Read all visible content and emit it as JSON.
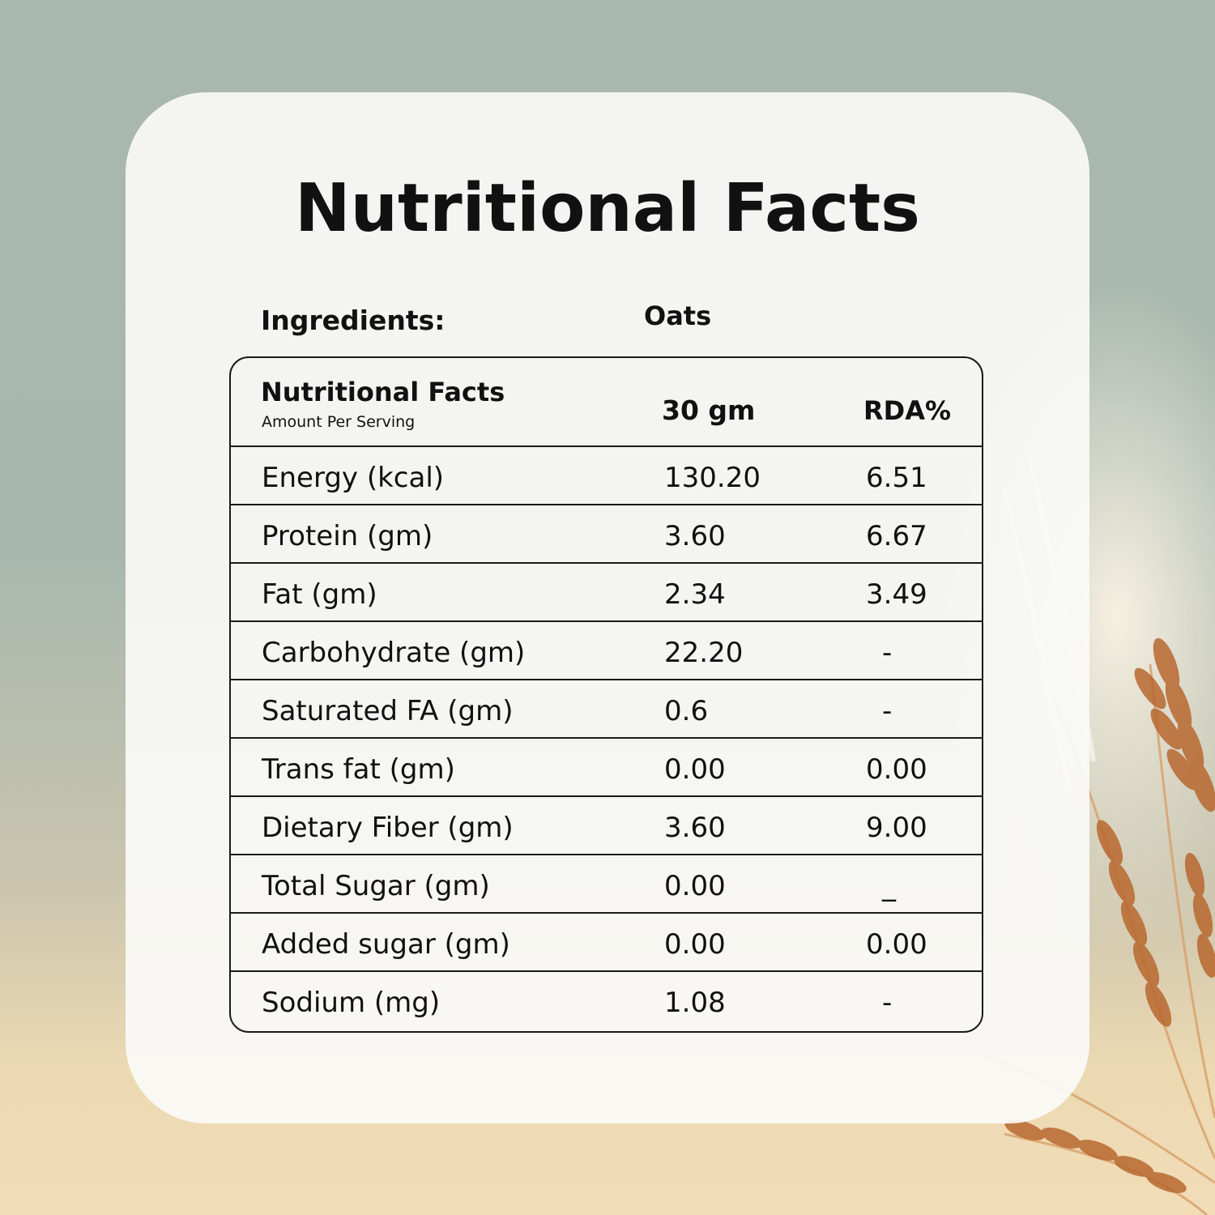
{
  "title": "Nutritional Facts",
  "ingredients": {
    "label": "Ingredients:",
    "value": "Oats"
  },
  "table": {
    "header": {
      "title": "Nutritional Facts",
      "subtitle": "Amount Per Serving",
      "col_amount": "30 gm",
      "col_rda": "RDA%"
    },
    "rows": [
      {
        "name": "Energy (kcal)",
        "amount": "130.20",
        "rda": "6.51"
      },
      {
        "name": "Protein (gm)",
        "amount": "3.60",
        "rda": "6.67"
      },
      {
        "name": "Fat (gm)",
        "amount": "2.34",
        "rda": "3.49"
      },
      {
        "name": "Carbohydrate (gm)",
        "amount": "22.20",
        "rda": "-"
      },
      {
        "name": "Saturated FA (gm)",
        "amount": "0.6",
        "rda": "-"
      },
      {
        "name": "Trans fat (gm)",
        "amount": "0.00",
        "rda": "0.00"
      },
      {
        "name": "Dietary Fiber (gm)",
        "amount": "3.60",
        "rda": "9.00"
      },
      {
        "name": "Total Sugar (gm)",
        "amount": "0.00",
        "rda": "_"
      },
      {
        "name": "Added sugar (gm)",
        "amount": "0.00",
        "rda": "0.00"
      },
      {
        "name": "Sodium (mg)",
        "amount": "1.08",
        "rda": "-"
      }
    ]
  },
  "colors": {
    "background_top": "#a9b8ae",
    "background_bottom": "#f1dcb6",
    "card": "#fafaf8",
    "text": "#111111",
    "wheat": "#b8672f"
  },
  "decoration": {
    "background_image": "wheat-stalks"
  }
}
